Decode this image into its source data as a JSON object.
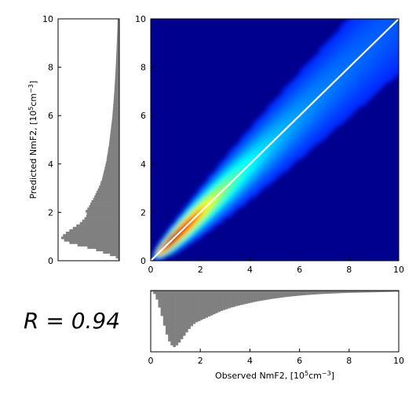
{
  "chart_data": [
    {
      "type": "heatmap",
      "name": "main-density",
      "xlim": [
        0,
        10
      ],
      "ylim": [
        0,
        10
      ],
      "xticks": [
        0,
        2,
        4,
        6,
        8,
        10
      ],
      "yticks": [
        0,
        2,
        4,
        6,
        8,
        10
      ],
      "xtick_labels": [
        "0",
        "2",
        "4",
        "6",
        "8",
        "10"
      ],
      "ytick_labels": [
        "0",
        "2",
        "4",
        "6",
        "8",
        "10"
      ],
      "background_color": "#00008f",
      "identity_line": {
        "x": [
          0,
          10
        ],
        "y": [
          0,
          10
        ],
        "color": "#ffffff"
      },
      "density_peak": {
        "x": 0.9,
        "y": 1.0
      }
    },
    {
      "type": "bar",
      "name": "predicted-histogram",
      "orientation": "horizontal",
      "ylim": [
        0,
        10
      ],
      "yticks": [
        0,
        2,
        4,
        6,
        8,
        10
      ],
      "ytick_labels": [
        "0",
        "2",
        "4",
        "6",
        "8",
        "10"
      ],
      "ylabel_main": "Predicted NmF2, [10",
      "ylabel_sup": "5",
      "ylabel_unit": "cm",
      "ylabel_unit_sup": "−3",
      "ylabel_end": "]",
      "color": "#808080",
      "bin_width": 0.1,
      "y_centers": [
        0.05,
        0.15,
        0.25,
        0.35,
        0.45,
        0.55,
        0.65,
        0.75,
        0.85,
        0.95,
        1.05,
        1.15,
        1.25,
        1.35,
        1.45,
        1.55,
        1.65,
        1.75,
        1.85,
        1.95,
        2.05,
        2.15,
        2.25,
        2.35,
        2.45,
        2.55,
        2.65,
        2.75,
        2.85,
        2.95,
        3.05,
        3.15,
        3.25,
        3.35,
        3.45,
        3.55,
        3.65,
        3.75,
        3.85,
        3.95,
        4.05,
        4.15,
        4.25,
        4.35,
        4.45,
        4.55,
        4.65,
        4.75,
        4.85,
        4.95,
        5.05,
        5.15,
        5.25,
        5.35,
        5.45,
        5.55,
        5.65,
        5.75,
        5.85,
        5.95,
        6.05,
        6.15,
        6.25,
        6.35,
        6.45,
        6.55,
        6.65,
        6.75,
        6.85,
        6.95,
        7.05,
        7.15,
        7.25,
        7.35,
        7.45,
        7.55,
        7.65,
        7.75,
        7.85,
        7.95,
        8.05,
        8.15,
        8.25,
        8.35,
        8.45,
        8.55,
        8.65,
        8.75,
        8.85,
        8.95,
        9.05,
        9.15,
        9.25,
        9.35,
        9.45,
        9.55,
        9.65,
        9.75,
        9.85,
        9.95
      ],
      "values": [
        0.02,
        0.06,
        0.16,
        0.28,
        0.4,
        0.55,
        0.72,
        0.86,
        0.95,
        1.0,
        0.97,
        0.92,
        0.86,
        0.8,
        0.74,
        0.68,
        0.64,
        0.6,
        0.57,
        0.56,
        0.58,
        0.55,
        0.52,
        0.5,
        0.48,
        0.45,
        0.43,
        0.41,
        0.39,
        0.37,
        0.35,
        0.33,
        0.32,
        0.3,
        0.29,
        0.28,
        0.27,
        0.26,
        0.25,
        0.24,
        0.23,
        0.22,
        0.215,
        0.21,
        0.2,
        0.195,
        0.19,
        0.18,
        0.175,
        0.17,
        0.165,
        0.16,
        0.155,
        0.15,
        0.145,
        0.14,
        0.135,
        0.13,
        0.125,
        0.12,
        0.117,
        0.114,
        0.11,
        0.107,
        0.104,
        0.1,
        0.097,
        0.094,
        0.091,
        0.088,
        0.085,
        0.082,
        0.08,
        0.077,
        0.075,
        0.072,
        0.07,
        0.068,
        0.065,
        0.063,
        0.061,
        0.059,
        0.057,
        0.055,
        0.053,
        0.051,
        0.049,
        0.047,
        0.045,
        0.044,
        0.042,
        0.04,
        0.039,
        0.037,
        0.036,
        0.034,
        0.033,
        0.032,
        0.031,
        0.03
      ]
    },
    {
      "type": "bar",
      "name": "observed-histogram",
      "orientation": "vertical",
      "xlim": [
        0,
        10
      ],
      "xticks": [
        0,
        2,
        4,
        6,
        8,
        10
      ],
      "xtick_labels": [
        "0",
        "2",
        "4",
        "6",
        "8",
        "10"
      ],
      "xlabel_main": "Observed NmF2, [10",
      "xlabel_sup": "5",
      "xlabel_unit": "cm",
      "xlabel_unit_sup": "−3",
      "xlabel_end": "]",
      "color": "#808080",
      "bin_width": 0.1,
      "x_centers": [
        0.05,
        0.15,
        0.25,
        0.35,
        0.45,
        0.55,
        0.65,
        0.75,
        0.85,
        0.95,
        1.05,
        1.15,
        1.25,
        1.35,
        1.45,
        1.55,
        1.65,
        1.75,
        1.85,
        1.95,
        2.05,
        2.15,
        2.25,
        2.35,
        2.45,
        2.55,
        2.65,
        2.75,
        2.85,
        2.95,
        3.05,
        3.15,
        3.25,
        3.35,
        3.45,
        3.55,
        3.65,
        3.75,
        3.85,
        3.95,
        4.05,
        4.15,
        4.25,
        4.35,
        4.45,
        4.55,
        4.65,
        4.75,
        4.85,
        4.95,
        5.05,
        5.15,
        5.25,
        5.35,
        5.45,
        5.55,
        5.65,
        5.75,
        5.85,
        5.95,
        6.05,
        6.15,
        6.25,
        6.35,
        6.45,
        6.55,
        6.65,
        6.75,
        6.85,
        6.95,
        7.05,
        7.15,
        7.25,
        7.35,
        7.45,
        7.55,
        7.65,
        7.75,
        7.85,
        7.95,
        8.05,
        8.15,
        8.25,
        8.35,
        8.45,
        8.55,
        8.65,
        8.75,
        8.85,
        8.95,
        9.05,
        9.15,
        9.25,
        9.35,
        9.45,
        9.55,
        9.65,
        9.75,
        9.85,
        9.95
      ],
      "values": [
        0.02,
        0.06,
        0.16,
        0.3,
        0.45,
        0.62,
        0.78,
        0.9,
        0.97,
        1.0,
        0.97,
        0.92,
        0.86,
        0.8,
        0.74,
        0.68,
        0.63,
        0.59,
        0.56,
        0.54,
        0.52,
        0.5,
        0.48,
        0.46,
        0.44,
        0.42,
        0.4,
        0.38,
        0.36,
        0.345,
        0.33,
        0.315,
        0.3,
        0.29,
        0.275,
        0.265,
        0.255,
        0.245,
        0.235,
        0.225,
        0.215,
        0.205,
        0.195,
        0.188,
        0.18,
        0.172,
        0.165,
        0.158,
        0.15,
        0.144,
        0.138,
        0.132,
        0.126,
        0.12,
        0.115,
        0.11,
        0.105,
        0.1,
        0.096,
        0.092,
        0.088,
        0.084,
        0.08,
        0.077,
        0.074,
        0.071,
        0.068,
        0.065,
        0.062,
        0.06,
        0.058,
        0.056,
        0.054,
        0.052,
        0.05,
        0.048,
        0.046,
        0.044,
        0.043,
        0.041,
        0.04,
        0.039,
        0.038,
        0.037,
        0.036,
        0.035,
        0.034,
        0.033,
        0.032,
        0.031,
        0.03,
        0.029,
        0.028,
        0.027,
        0.026,
        0.025,
        0.024,
        0.023,
        0.022,
        0.021
      ]
    }
  ],
  "annotation": {
    "r_label": "R = 0.94"
  }
}
